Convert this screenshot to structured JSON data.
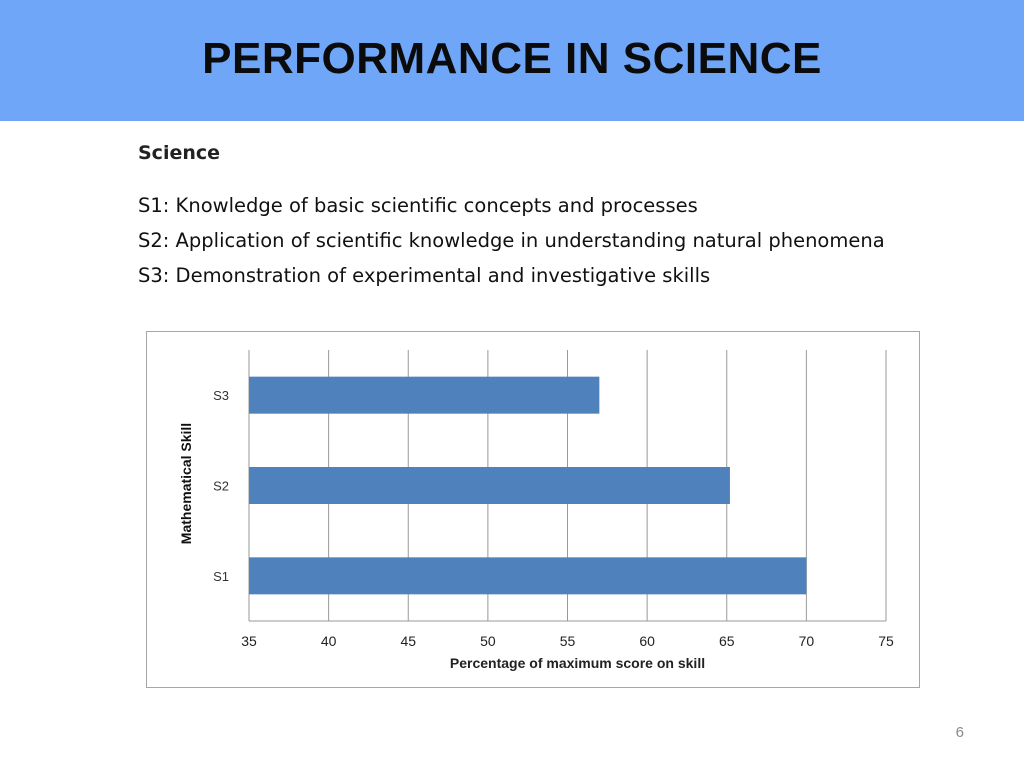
{
  "slide": {
    "title": "PERFORMANCE IN SCIENCE",
    "subheading": "Science",
    "descriptions": [
      "S1: Knowledge of basic scientific concepts and processes",
      "S2: Application of scientific knowledge in understanding natural phenomena",
      "S3: Demonstration of experimental and investigative skills"
    ],
    "page_number": "6"
  },
  "colors": {
    "title_bar": "#6fa6f8",
    "bar": "#4f81bd",
    "grid": "#999999"
  },
  "chart_data": {
    "type": "bar",
    "orientation": "horizontal",
    "categories": [
      "S1",
      "S2",
      "S3"
    ],
    "values": [
      70,
      65.2,
      57
    ],
    "xlabel": "Percentage of maximum score on skill",
    "ylabel": "Mathematical Skill",
    "xlim": [
      35,
      75
    ],
    "xticks": [
      35,
      40,
      45,
      50,
      55,
      60,
      65,
      70,
      75
    ],
    "grid": "vertical"
  }
}
